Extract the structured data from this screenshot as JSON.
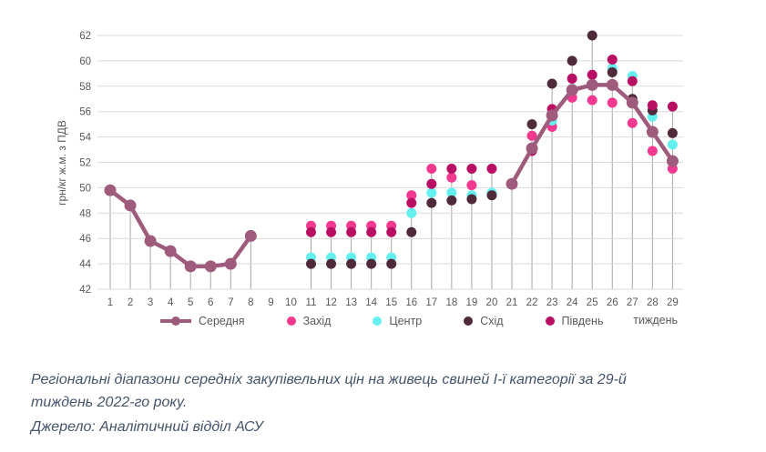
{
  "chart_data": {
    "type": "line",
    "title": "",
    "ylabel": "грн/кг ж.м. з ПДВ",
    "xlabel": "тиждень",
    "ylim": [
      42,
      62
    ],
    "ytick_step": 2,
    "weeks": [
      1,
      2,
      3,
      4,
      5,
      6,
      7,
      8,
      9,
      10,
      11,
      12,
      13,
      14,
      15,
      16,
      17,
      18,
      19,
      20,
      21,
      22,
      23,
      24,
      25,
      26,
      27,
      28,
      29
    ],
    "grid": "horizontal",
    "legend_position": "bottom",
    "grid_color": "#d9d9d9",
    "dropline_color": "#a6a6a6",
    "axis_text_color": "#595959",
    "series": [
      {
        "name": "Середня",
        "type": "line",
        "color": "#9E5B7C",
        "points": [
          [
            1,
            49.8
          ],
          [
            2,
            48.6
          ],
          [
            3,
            45.8
          ],
          [
            4,
            45.0
          ],
          [
            5,
            43.8
          ],
          [
            6,
            43.8
          ],
          [
            7,
            44.0
          ],
          [
            8,
            46.2
          ],
          [
            21,
            50.3
          ],
          [
            22,
            53.1
          ],
          [
            23,
            55.7
          ],
          [
            24,
            57.7
          ],
          [
            25,
            58.1
          ],
          [
            26,
            58.1
          ],
          [
            27,
            56.7
          ],
          [
            28,
            54.4
          ],
          [
            29,
            52.1
          ]
        ]
      },
      {
        "name": "Захід",
        "type": "scatter",
        "color": "#F2388F",
        "points": [
          [
            11,
            47.0
          ],
          [
            12,
            47.0
          ],
          [
            13,
            47.0
          ],
          [
            14,
            47.0
          ],
          [
            15,
            47.0
          ],
          [
            16,
            49.4
          ],
          [
            17,
            51.5
          ],
          [
            18,
            50.8
          ],
          [
            19,
            50.2
          ],
          [
            22,
            54.1
          ],
          [
            23,
            54.8
          ],
          [
            24,
            57.1
          ],
          [
            25,
            56.9
          ],
          [
            26,
            56.7
          ],
          [
            27,
            55.1
          ],
          [
            28,
            52.9
          ],
          [
            29,
            51.5
          ]
        ]
      },
      {
        "name": "Центр",
        "type": "scatter",
        "color": "#63F0EE",
        "points": [
          [
            11,
            44.5
          ],
          [
            12,
            44.5
          ],
          [
            13,
            44.5
          ],
          [
            14,
            44.5
          ],
          [
            15,
            44.5
          ],
          [
            16,
            48.0
          ],
          [
            17,
            49.6
          ],
          [
            18,
            49.6
          ],
          [
            19,
            49.4
          ],
          [
            20,
            49.6
          ],
          [
            23,
            55.3
          ],
          [
            24,
            57.8
          ],
          [
            26,
            59.4
          ],
          [
            27,
            58.8
          ],
          [
            28,
            55.6
          ],
          [
            29,
            53.4
          ]
        ]
      },
      {
        "name": "Схід",
        "type": "scatter",
        "color": "#4F2A3A",
        "points": [
          [
            11,
            44.0
          ],
          [
            12,
            44.0
          ],
          [
            13,
            44.0
          ],
          [
            14,
            44.0
          ],
          [
            15,
            44.0
          ],
          [
            16,
            46.5
          ],
          [
            17,
            48.8
          ],
          [
            18,
            49.0
          ],
          [
            19,
            49.1
          ],
          [
            20,
            49.4
          ],
          [
            22,
            55.0
          ],
          [
            23,
            58.2
          ],
          [
            24,
            60.0
          ],
          [
            25,
            62.0
          ],
          [
            26,
            59.1
          ],
          [
            27,
            57.0
          ],
          [
            28,
            56.1
          ],
          [
            29,
            54.3
          ]
        ]
      },
      {
        "name": "Південь",
        "type": "scatter",
        "color": "#B80F63",
        "points": [
          [
            11,
            46.5
          ],
          [
            12,
            46.5
          ],
          [
            13,
            46.5
          ],
          [
            14,
            46.5
          ],
          [
            15,
            46.5
          ],
          [
            16,
            48.8
          ],
          [
            17,
            50.3
          ],
          [
            18,
            51.5
          ],
          [
            19,
            51.5
          ],
          [
            20,
            51.5
          ],
          [
            22,
            52.9
          ],
          [
            23,
            56.2
          ],
          [
            24,
            58.6
          ],
          [
            25,
            58.9
          ],
          [
            26,
            60.1
          ],
          [
            27,
            58.4
          ],
          [
            28,
            56.5
          ],
          [
            29,
            56.4
          ]
        ]
      }
    ]
  },
  "caption": {
    "text": "Регіональні діапазони середніх закупівельних цін на живець свиней І-ї категорії за 29-й тиждень 2022-го року.",
    "source": "Джерело: Аналітичний відділ АСУ"
  }
}
